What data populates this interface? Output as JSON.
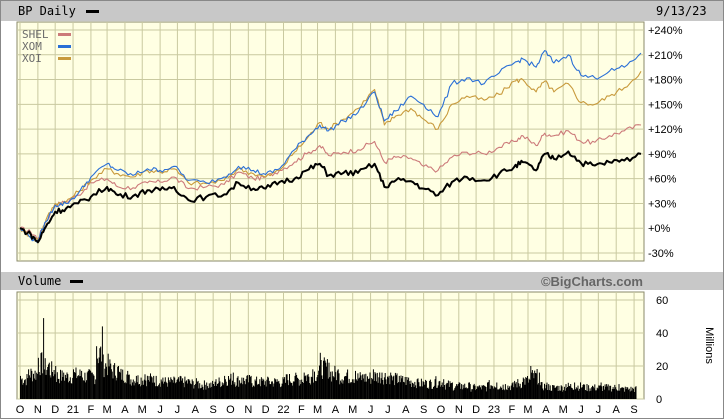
{
  "header": {
    "title": "BP Daily",
    "date": "9/13/23"
  },
  "volume_header": {
    "title": "Volume",
    "watermark": "©BigCharts.com"
  },
  "colors": {
    "background": "#ffffff",
    "plot_bg": "#ffffe3",
    "grid": "#c9c9a0",
    "header_bg": "#c8c8c8",
    "BP": "#000000",
    "SHEL": "#cc7a7a",
    "XOM": "#2a6fd6",
    "XOI": "#c89a3c"
  },
  "chart_data": [
    {
      "type": "line",
      "title": "BP Daily",
      "x_range": [
        "2020-10-01",
        "2023-09-13"
      ],
      "y_range": [
        -30,
        240
      ],
      "y_unit": "%",
      "y_ticks": [
        "+240%",
        "+210%",
        "+180%",
        "+150%",
        "+120%",
        "+90%",
        "+60%",
        "+30%",
        "+0%",
        "-30%"
      ],
      "y_tick_values": [
        240,
        210,
        180,
        150,
        120,
        90,
        60,
        30,
        0,
        -30
      ],
      "grid": true,
      "legend_position": "top-left",
      "series": [
        {
          "name": "BP",
          "x": [
            "2020-10-01",
            "2020-10-20",
            "2020-11-01",
            "2020-11-15",
            "2020-12-01",
            "2020-12-20",
            "2021-01-10",
            "2021-02-01",
            "2021-03-01",
            "2021-03-20",
            "2021-04-15",
            "2021-05-10",
            "2021-06-01",
            "2021-06-25",
            "2021-07-20",
            "2021-08-20",
            "2021-09-20",
            "2021-10-15",
            "2021-11-10",
            "2021-12-01",
            "2021-12-25",
            "2022-01-20",
            "2022-02-10",
            "2022-03-05",
            "2022-03-20",
            "2022-04-15",
            "2022-05-10",
            "2022-06-08",
            "2022-06-25",
            "2022-07-15",
            "2022-08-10",
            "2022-09-01",
            "2022-09-26",
            "2022-10-20",
            "2022-11-15",
            "2022-12-15",
            "2023-01-10",
            "2023-02-05",
            "2023-02-20",
            "2023-03-15",
            "2023-03-30",
            "2023-04-15",
            "2023-05-10",
            "2023-06-01",
            "2023-06-25",
            "2023-07-20",
            "2023-08-15",
            "2023-09-13"
          ],
          "values": [
            0,
            -8,
            -17,
            2,
            20,
            24,
            30,
            38,
            50,
            40,
            39,
            46,
            46,
            50,
            34,
            38,
            41,
            55,
            48,
            48,
            56,
            60,
            70,
            78,
            64,
            67,
            67,
            78,
            50,
            58,
            57,
            48,
            40,
            56,
            62,
            58,
            66,
            74,
            80,
            70,
            90,
            84,
            93,
            79,
            76,
            80,
            82,
            90
          ]
        },
        {
          "name": "SHEL",
          "x": [
            "2020-10-01",
            "2020-10-20",
            "2020-11-01",
            "2020-11-15",
            "2020-12-01",
            "2020-12-20",
            "2021-01-10",
            "2021-02-01",
            "2021-03-01",
            "2021-03-20",
            "2021-04-15",
            "2021-05-10",
            "2021-06-01",
            "2021-06-25",
            "2021-07-20",
            "2021-08-20",
            "2021-09-20",
            "2021-10-15",
            "2021-11-10",
            "2021-12-01",
            "2021-12-25",
            "2022-01-20",
            "2022-02-10",
            "2022-03-05",
            "2022-03-20",
            "2022-04-15",
            "2022-05-10",
            "2022-06-08",
            "2022-06-25",
            "2022-07-15",
            "2022-08-10",
            "2022-09-01",
            "2022-09-26",
            "2022-10-20",
            "2022-11-15",
            "2022-12-15",
            "2023-01-10",
            "2023-02-05",
            "2023-02-20",
            "2023-03-15",
            "2023-03-30",
            "2023-04-15",
            "2023-05-10",
            "2023-06-01",
            "2023-06-25",
            "2023-07-20",
            "2023-08-15",
            "2023-09-13"
          ],
          "values": [
            0,
            -5,
            -12,
            8,
            28,
            32,
            40,
            55,
            60,
            50,
            49,
            55,
            56,
            62,
            48,
            50,
            53,
            68,
            60,
            62,
            70,
            80,
            90,
            100,
            88,
            92,
            95,
            105,
            80,
            86,
            85,
            75,
            70,
            86,
            92,
            90,
            98,
            105,
            112,
            100,
            115,
            112,
            118,
            105,
            104,
            112,
            118,
            125
          ]
        },
        {
          "name": "XOM",
          "x": [
            "2020-10-01",
            "2020-10-20",
            "2020-11-01",
            "2020-11-15",
            "2020-12-01",
            "2020-12-20",
            "2021-01-10",
            "2021-02-01",
            "2021-03-01",
            "2021-03-20",
            "2021-04-15",
            "2021-05-10",
            "2021-06-01",
            "2021-06-25",
            "2021-07-20",
            "2021-08-20",
            "2021-09-20",
            "2021-10-15",
            "2021-11-10",
            "2021-12-01",
            "2021-12-25",
            "2022-01-20",
            "2022-02-10",
            "2022-03-05",
            "2022-03-20",
            "2022-04-15",
            "2022-05-10",
            "2022-06-08",
            "2022-06-25",
            "2022-07-15",
            "2022-08-10",
            "2022-09-01",
            "2022-09-26",
            "2022-10-20",
            "2022-11-15",
            "2022-12-15",
            "2023-01-10",
            "2023-02-05",
            "2023-02-20",
            "2023-03-15",
            "2023-03-30",
            "2023-04-15",
            "2023-05-10",
            "2023-06-01",
            "2023-06-25",
            "2023-07-20",
            "2023-08-15",
            "2023-09-13"
          ],
          "values": [
            0,
            -12,
            -15,
            8,
            28,
            30,
            42,
            62,
            78,
            70,
            64,
            72,
            70,
            75,
            58,
            55,
            62,
            75,
            70,
            65,
            72,
            95,
            110,
            125,
            118,
            130,
            140,
            165,
            130,
            142,
            160,
            150,
            135,
            175,
            182,
            175,
            188,
            200,
            205,
            195,
            215,
            200,
            210,
            185,
            182,
            190,
            195,
            212
          ]
        },
        {
          "name": "XOI",
          "x": [
            "2020-10-01",
            "2020-10-20",
            "2020-11-01",
            "2020-11-15",
            "2020-12-01",
            "2020-12-20",
            "2021-01-10",
            "2021-02-01",
            "2021-03-01",
            "2021-03-20",
            "2021-04-15",
            "2021-05-10",
            "2021-06-01",
            "2021-06-25",
            "2021-07-20",
            "2021-08-20",
            "2021-09-20",
            "2021-10-15",
            "2021-11-10",
            "2021-12-01",
            "2021-12-25",
            "2022-01-20",
            "2022-02-10",
            "2022-03-05",
            "2022-03-20",
            "2022-04-15",
            "2022-05-10",
            "2022-06-08",
            "2022-06-25",
            "2022-07-15",
            "2022-08-10",
            "2022-09-01",
            "2022-09-26",
            "2022-10-20",
            "2022-11-15",
            "2022-12-15",
            "2023-01-10",
            "2023-02-05",
            "2023-02-20",
            "2023-03-15",
            "2023-03-30",
            "2023-04-15",
            "2023-05-10",
            "2023-06-01",
            "2023-06-25",
            "2023-07-20",
            "2023-08-15",
            "2023-09-13"
          ],
          "values": [
            0,
            -10,
            -14,
            10,
            30,
            32,
            44,
            58,
            72,
            66,
            62,
            70,
            68,
            72,
            55,
            54,
            58,
            72,
            66,
            62,
            70,
            92,
            108,
            128,
            120,
            132,
            145,
            168,
            125,
            136,
            145,
            132,
            120,
            150,
            160,
            155,
            162,
            178,
            180,
            165,
            178,
            165,
            175,
            152,
            150,
            160,
            170,
            190
          ]
        }
      ]
    },
    {
      "type": "bar",
      "title": "Volume",
      "y_unit": "Millions",
      "y_range": [
        0,
        60
      ],
      "y_ticks": [
        "60",
        "40",
        "20",
        "0"
      ],
      "y_tick_values": [
        60,
        40,
        20,
        0
      ],
      "x_range": [
        "2020-10-01",
        "2023-09-13"
      ],
      "x_ticks": [
        "O",
        "N",
        "D",
        "21",
        "F",
        "M",
        "A",
        "M",
        "J",
        "J",
        "A",
        "S",
        "O",
        "N",
        "D",
        "22",
        "F",
        "M",
        "A",
        "M",
        "J",
        "J",
        "A",
        "S",
        "O",
        "N",
        "D",
        "23",
        "F",
        "M",
        "A",
        "M",
        "J",
        "J",
        "A",
        "S"
      ],
      "x_tick_dates": [
        "2020-10-01",
        "2020-11-01",
        "2020-12-01",
        "2021-01-01",
        "2021-02-01",
        "2021-03-01",
        "2021-04-01",
        "2021-05-01",
        "2021-06-01",
        "2021-07-01",
        "2021-08-01",
        "2021-09-01",
        "2021-10-01",
        "2021-11-01",
        "2021-12-01",
        "2022-01-01",
        "2022-02-01",
        "2022-03-01",
        "2022-04-01",
        "2022-05-01",
        "2022-06-01",
        "2022-07-01",
        "2022-08-01",
        "2022-09-01",
        "2022-10-01",
        "2022-11-01",
        "2022-12-01",
        "2023-01-01",
        "2023-02-01",
        "2023-03-01",
        "2023-04-01",
        "2023-05-01",
        "2023-06-01",
        "2023-07-01",
        "2023-08-01",
        "2023-09-01"
      ],
      "grid": true,
      "series": [
        {
          "name": "BP",
          "x": [
            "2020-10-01",
            "2020-10-15",
            "2020-11-01",
            "2020-11-10",
            "2020-11-20",
            "2020-12-01",
            "2020-12-15",
            "2021-01-01",
            "2021-01-15",
            "2021-02-01",
            "2021-02-10",
            "2021-02-20",
            "2021-03-05",
            "2021-03-20",
            "2021-04-05",
            "2021-04-20",
            "2021-05-05",
            "2021-05-20",
            "2021-06-05",
            "2021-06-20",
            "2021-07-05",
            "2021-07-20",
            "2021-08-05",
            "2021-08-20",
            "2021-09-05",
            "2021-09-20",
            "2021-10-05",
            "2021-10-20",
            "2021-11-05",
            "2021-11-20",
            "2021-12-05",
            "2021-12-20",
            "2022-01-05",
            "2022-01-20",
            "2022-02-05",
            "2022-02-20",
            "2022-03-05",
            "2022-03-20",
            "2022-04-05",
            "2022-04-20",
            "2022-05-05",
            "2022-05-20",
            "2022-06-05",
            "2022-06-20",
            "2022-07-05",
            "2022-07-20",
            "2022-08-05",
            "2022-08-20",
            "2022-09-05",
            "2022-09-20",
            "2022-10-05",
            "2022-10-20",
            "2022-11-05",
            "2022-11-20",
            "2022-12-05",
            "2022-12-20",
            "2023-01-05",
            "2023-01-20",
            "2023-02-05",
            "2023-02-20",
            "2023-03-05",
            "2023-03-20",
            "2023-04-05",
            "2023-04-20",
            "2023-05-05",
            "2023-05-20",
            "2023-06-05",
            "2023-06-20",
            "2023-07-05",
            "2023-07-20",
            "2023-08-05",
            "2023-08-20",
            "2023-09-05"
          ],
          "values": [
            14,
            18,
            25,
            49,
            22,
            20,
            16,
            18,
            17,
            16,
            32,
            44,
            24,
            20,
            17,
            14,
            15,
            14,
            13,
            12,
            14,
            12,
            11,
            10,
            12,
            14,
            16,
            13,
            14,
            12,
            13,
            12,
            15,
            14,
            16,
            18,
            28,
            22,
            18,
            16,
            17,
            15,
            18,
            16,
            16,
            14,
            13,
            12,
            11,
            12,
            12,
            10,
            9,
            9,
            8,
            10,
            10,
            9,
            11,
            13,
            20,
            16,
            9,
            8,
            9,
            10,
            9,
            8,
            10,
            8,
            9,
            7,
            7
          ]
        }
      ]
    }
  ]
}
